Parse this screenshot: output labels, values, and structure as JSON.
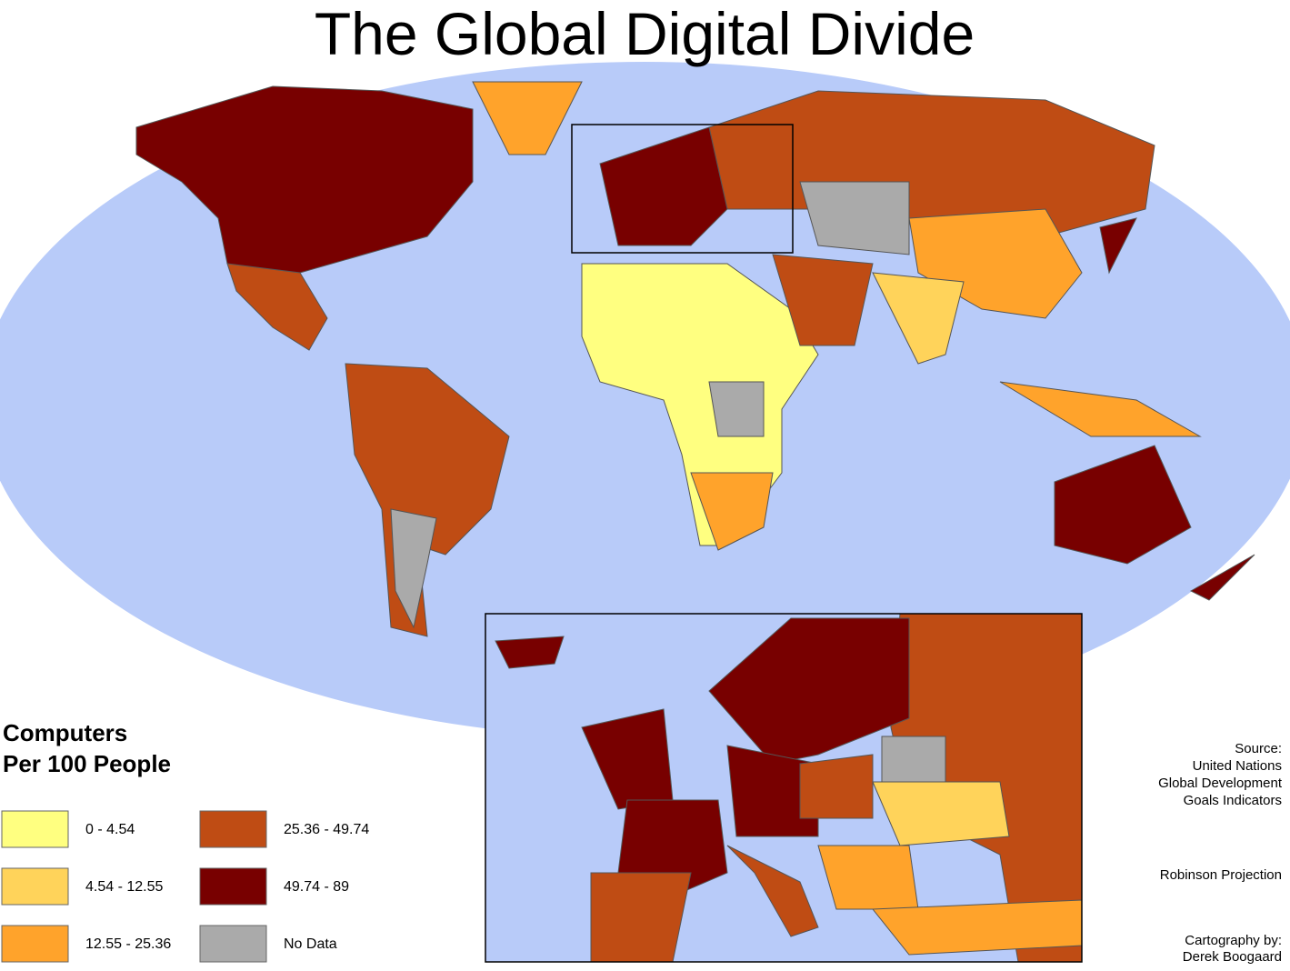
{
  "title": "The Global Digital Divide",
  "legend": {
    "title": [
      "Computers",
      "Per 100 People"
    ],
    "items": [
      {
        "label": "0 - 4.54",
        "color": "#ffff80"
      },
      {
        "label": "4.54 - 12.55",
        "color": "#ffd35a"
      },
      {
        "label": "12.55 - 25.36",
        "color": "#ffa32b"
      },
      {
        "label": "25.36 - 49.74",
        "color": "#bf4c14"
      },
      {
        "label": "49.74 - 89",
        "color": "#780000"
      },
      {
        "label": "No Data",
        "color": "#aaaaaa"
      }
    ]
  },
  "source": [
    "Source:",
    "United Nations",
    "Global Development",
    "Goals Indicators"
  ],
  "projection": "Robinson Projection",
  "credits": [
    "Cartography by:",
    "Derek Boogaard"
  ]
}
